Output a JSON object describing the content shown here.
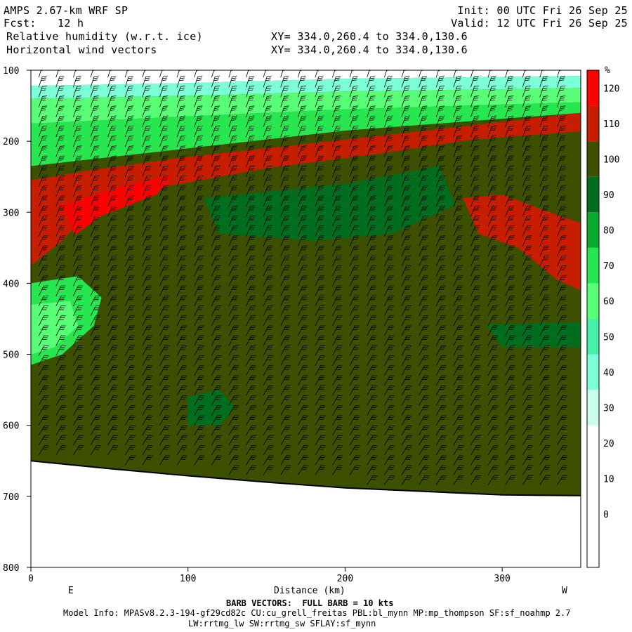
{
  "header": {
    "model": "AMPS 2.67-km WRF SP",
    "fcst_label": "Fcst:",
    "fcst_value": "12 h",
    "init": "Init: 00 UTC Fri 26 Sep 25",
    "valid": "Valid: 12 UTC Fri 26 Sep 25",
    "field1": "Relative humidity (w.r.t. ice)",
    "field2": "Horizontal wind vectors",
    "xy1": "XY= 334.0,260.4 to 334.0,130.6",
    "xy2": "XY= 334.0,260.4 to 334.0,130.6"
  },
  "footer": {
    "barb_note": "BARB VECTORS:  FULL BARB = 10 kts",
    "model_info": "Model Info: MPASv8.2.3-194-gf29cd82c CU:cu_grell_freitas PBL:bl_mynn MP:mp_thompson SF:sf_noahmp 2.7",
    "model_info2": "LW:rrtmg_lw SW:rrtmg_sw SFLAY:sf_mynn"
  },
  "chart_data": {
    "type": "heatmap",
    "title": "Relative humidity (w.r.t. ice)",
    "xlabel": "Distance (km)",
    "ylabel": "",
    "xlim": [
      0,
      350
    ],
    "ylim": [
      800,
      100
    ],
    "x_ticks": [
      0,
      100,
      200,
      300
    ],
    "y_ticks": [
      100,
      200,
      300,
      400,
      500,
      600,
      700,
      800
    ],
    "x_end_labels": {
      "left": "E",
      "right": "W"
    },
    "colorbar": {
      "unit": "%",
      "levels": [
        0,
        5,
        10,
        20,
        30,
        40,
        50,
        60,
        70,
        80,
        90,
        100,
        110,
        120
      ],
      "labels": [
        "0",
        "10",
        "20",
        "30",
        "40",
        "50",
        "60",
        "70",
        "80",
        "90",
        "100",
        "110",
        "120"
      ],
      "colors": [
        "#ffffff",
        "#ffffff",
        "#ffffff",
        "#ffffff",
        "#c8ffe8",
        "#7dffd8",
        "#46f0aa",
        "#5aff78",
        "#28e650",
        "#0aaa2d",
        "#006e1e",
        "#3c5000",
        "#c81e00",
        "#ff0000"
      ]
    },
    "terrain": [
      {
        "x": 0,
        "p": 650
      },
      {
        "x": 50,
        "p": 661
      },
      {
        "x": 100,
        "p": 671
      },
      {
        "x": 150,
        "p": 680
      },
      {
        "x": 200,
        "p": 688
      },
      {
        "x": 250,
        "p": 693
      },
      {
        "x": 300,
        "p": 698
      },
      {
        "x": 350,
        "p": 699
      }
    ],
    "regions": [
      {
        "name": "upper-dry",
        "rh": 20,
        "poly": [
          [
            0,
            100
          ],
          [
            350,
            100
          ],
          [
            350,
            108
          ],
          [
            200,
            112
          ],
          [
            100,
            118
          ],
          [
            0,
            122
          ]
        ]
      },
      {
        "name": "upper-moist-1",
        "rh": 45,
        "poly": [
          [
            0,
            122
          ],
          [
            100,
            118
          ],
          [
            200,
            112
          ],
          [
            350,
            108
          ],
          [
            350,
            125
          ],
          [
            200,
            130
          ],
          [
            100,
            136
          ],
          [
            0,
            140
          ]
        ]
      },
      {
        "name": "upper-moist-2",
        "rh": 65,
        "poly": [
          [
            0,
            140
          ],
          [
            100,
            136
          ],
          [
            200,
            130
          ],
          [
            350,
            125
          ],
          [
            350,
            145
          ],
          [
            200,
            155
          ],
          [
            100,
            165
          ],
          [
            0,
            175
          ]
        ]
      },
      {
        "name": "upper-moist-3",
        "rh": 75,
        "poly": [
          [
            0,
            175
          ],
          [
            100,
            165
          ],
          [
            200,
            155
          ],
          [
            350,
            145
          ],
          [
            350,
            160
          ],
          [
            200,
            185
          ],
          [
            100,
            210
          ],
          [
            0,
            235
          ]
        ]
      },
      {
        "name": "ice-supersat-band",
        "rh": 112,
        "poly": [
          [
            0,
            255
          ],
          [
            40,
            240
          ],
          [
            100,
            222
          ],
          [
            170,
            205
          ],
          [
            240,
            188
          ],
          [
            350,
            160
          ],
          [
            350,
            186
          ],
          [
            280,
            198
          ],
          [
            220,
            218
          ],
          [
            150,
            238
          ],
          [
            90,
            262
          ],
          [
            40,
            292
          ],
          [
            20,
            340
          ],
          [
            0,
            375
          ]
        ]
      },
      {
        "name": "ice-supersat-core",
        "rh": 122,
        "poly": [
          [
            20,
            290
          ],
          [
            60,
            262
          ],
          [
            90,
            248
          ],
          [
            80,
            275
          ],
          [
            45,
            305
          ],
          [
            28,
            332
          ]
        ]
      },
      {
        "name": "ice-supersat-east",
        "rh": 112,
        "poly": [
          [
            275,
            280
          ],
          [
            300,
            275
          ],
          [
            330,
            300
          ],
          [
            350,
            315
          ],
          [
            350,
            410
          ],
          [
            335,
            395
          ],
          [
            310,
            350
          ],
          [
            285,
            330
          ]
        ]
      },
      {
        "name": "midlevel-moist-a",
        "rh": 95,
        "poly": [
          [
            110,
            280
          ],
          [
            200,
            260
          ],
          [
            260,
            235
          ],
          [
            270,
            290
          ],
          [
            230,
            330
          ],
          [
            180,
            340
          ],
          [
            120,
            330
          ]
        ]
      },
      {
        "name": "dry-intrusion",
        "rh": 72,
        "poly": [
          [
            0,
            400
          ],
          [
            30,
            390
          ],
          [
            45,
            420
          ],
          [
            40,
            460
          ],
          [
            20,
            500
          ],
          [
            0,
            515
          ]
        ]
      },
      {
        "name": "dry-intrusion-core",
        "rh": 62,
        "poly": [
          [
            0,
            430
          ],
          [
            25,
            425
          ],
          [
            30,
            460
          ],
          [
            15,
            490
          ],
          [
            0,
            500
          ]
        ]
      },
      {
        "name": "low-moist",
        "rh": 95,
        "poly": [
          [
            100,
            560
          ],
          [
            120,
            550
          ],
          [
            130,
            575
          ],
          [
            120,
            600
          ],
          [
            100,
            600
          ]
        ]
      },
      {
        "name": "east-moist",
        "rh": 95,
        "poly": [
          [
            290,
            458
          ],
          [
            350,
            455
          ],
          [
            350,
            490
          ],
          [
            300,
            490
          ]
        ]
      }
    ],
    "background_rh": 105
  }
}
